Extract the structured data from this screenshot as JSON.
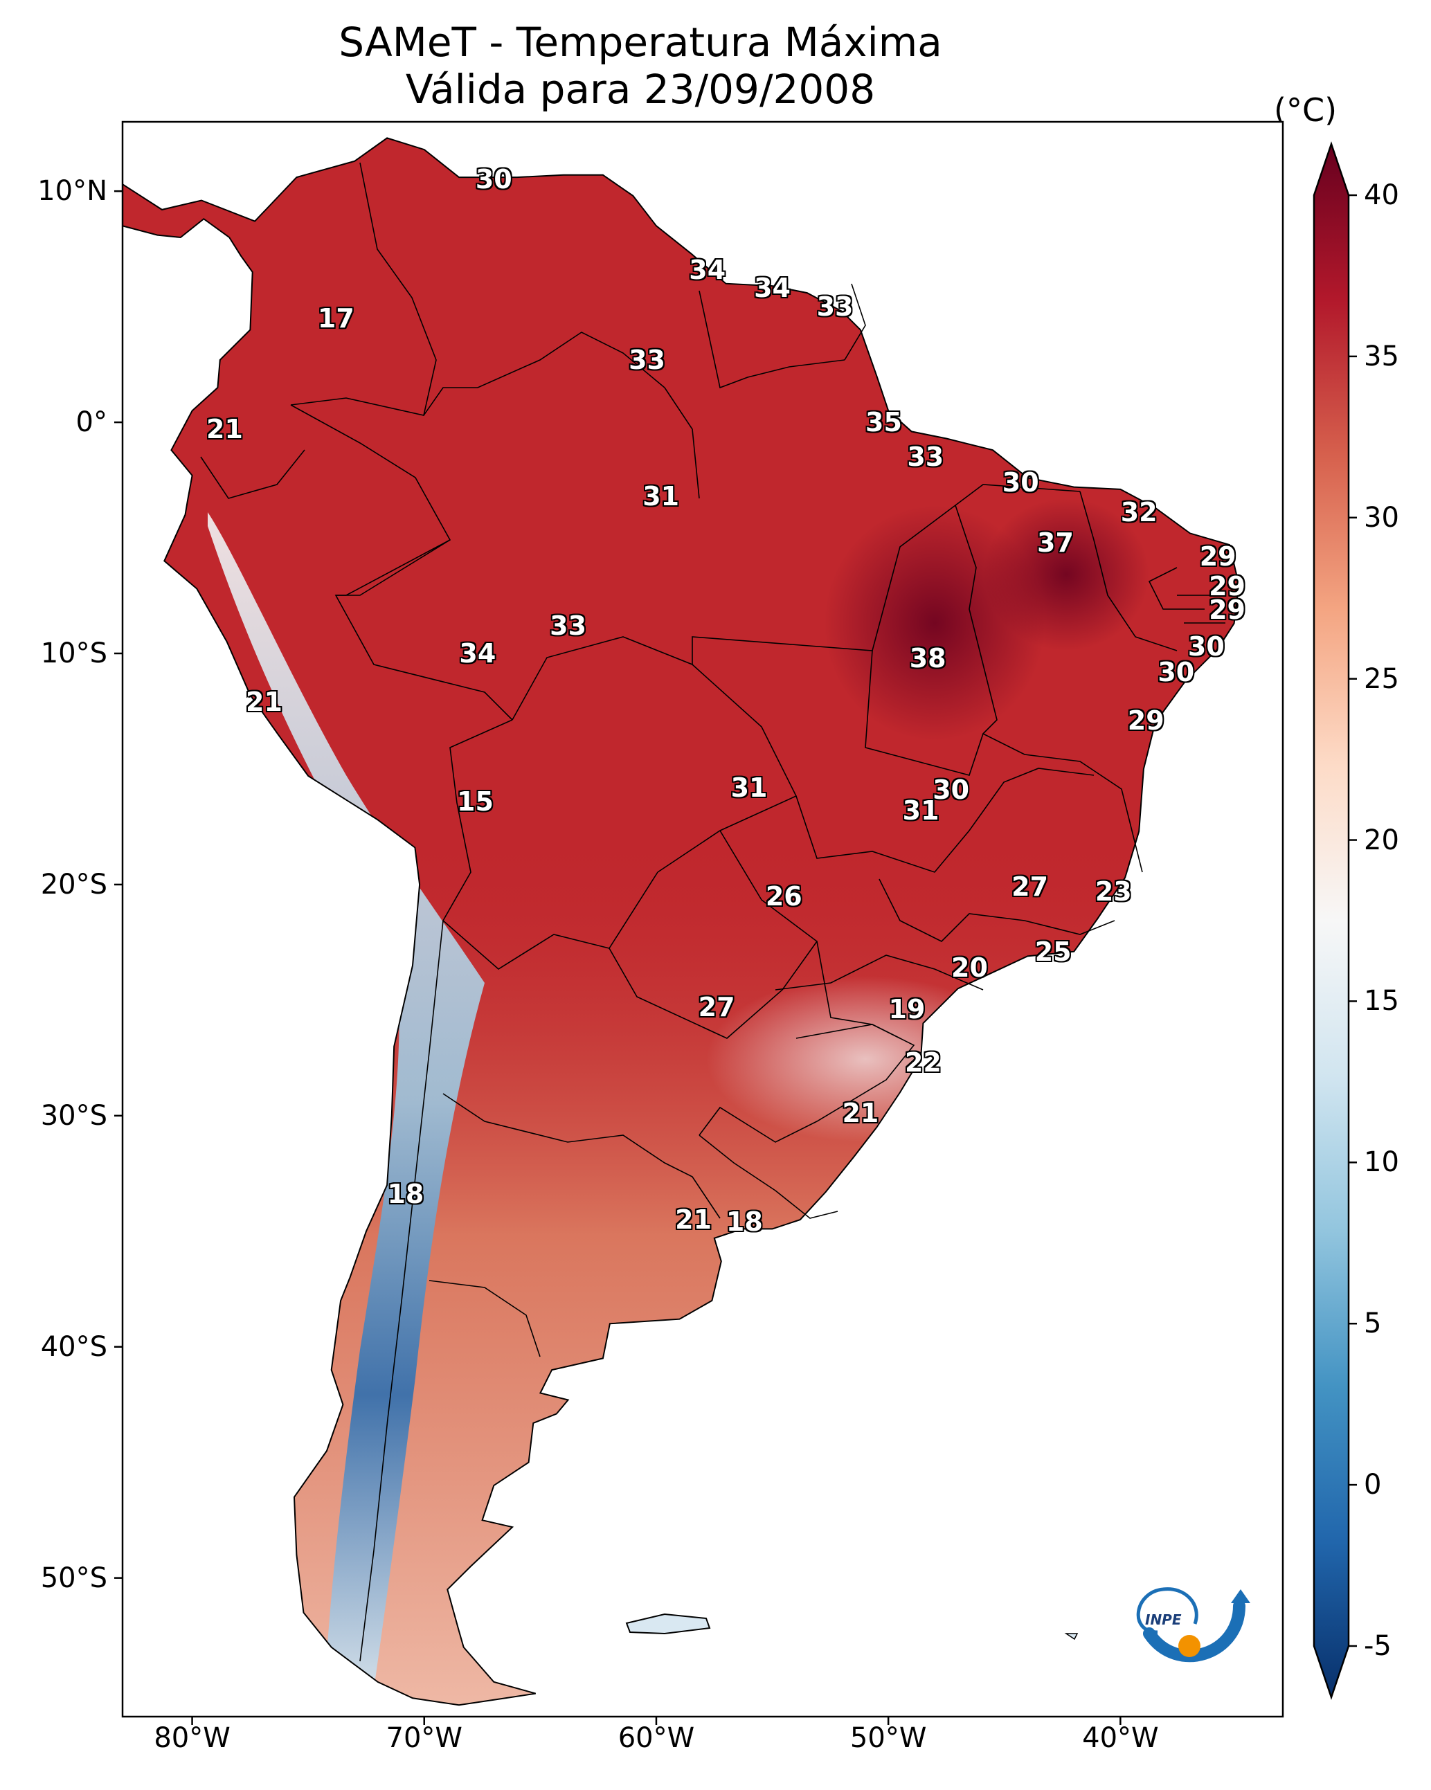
{
  "header": {
    "title_line1": "SAMeT - Temperatura Máxima",
    "title_line2": "Válida para 23/09/2008"
  },
  "colorbar": {
    "unit": "(°C)",
    "ticks": [
      "40",
      "35",
      "30",
      "25",
      "20",
      "15",
      "10",
      "5",
      "0",
      "-5"
    ],
    "min": -5,
    "max": 40,
    "colors": [
      "#08306b",
      "#2166ac",
      "#4393c3",
      "#92c5de",
      "#d1e5f0",
      "#f7f7f7",
      "#fddbc7",
      "#f4a582",
      "#d6604d",
      "#b2182b",
      "#67001f"
    ]
  },
  "axes": {
    "lat_labels": [
      "10°N",
      "0°",
      "10°S",
      "20°S",
      "30°S",
      "40°S",
      "50°S"
    ],
    "lon_labels": [
      "80°W",
      "70°W",
      "60°W",
      "50°W",
      "40°W"
    ]
  },
  "map": {
    "land_color": "#c0272d",
    "ocean_color": "#ffffff",
    "values": [
      {
        "label": "30",
        "lon": -67.0,
        "lat": 10.5
      },
      {
        "label": "17",
        "lon": -73.8,
        "lat": 4.5
      },
      {
        "label": "34",
        "lon": -57.8,
        "lat": 6.6
      },
      {
        "label": "34",
        "lon": -55.0,
        "lat": 5.8
      },
      {
        "label": "33",
        "lon": -52.3,
        "lat": 5.0
      },
      {
        "label": "33",
        "lon": -60.4,
        "lat": 2.7
      },
      {
        "label": "35",
        "lon": -50.2,
        "lat": 0.0
      },
      {
        "label": "21",
        "lon": -78.6,
        "lat": -0.3
      },
      {
        "label": "33",
        "lon": -48.4,
        "lat": -1.5
      },
      {
        "label": "30",
        "lon": -44.3,
        "lat": -2.6
      },
      {
        "label": "31",
        "lon": -59.8,
        "lat": -3.2
      },
      {
        "label": "32",
        "lon": -39.2,
        "lat": -3.9
      },
      {
        "label": "37",
        "lon": -42.8,
        "lat": -5.2
      },
      {
        "label": "29",
        "lon": -35.8,
        "lat": -5.8
      },
      {
        "label": "29",
        "lon": -35.4,
        "lat": -7.1
      },
      {
        "label": "29",
        "lon": -35.4,
        "lat": -8.1
      },
      {
        "label": "33",
        "lon": -63.8,
        "lat": -8.8
      },
      {
        "label": "34",
        "lon": -67.7,
        "lat": -10.0
      },
      {
        "label": "30",
        "lon": -36.3,
        "lat": -9.7
      },
      {
        "label": "38",
        "lon": -48.3,
        "lat": -10.2
      },
      {
        "label": "30",
        "lon": -37.6,
        "lat": -10.8
      },
      {
        "label": "21",
        "lon": -76.9,
        "lat": -12.1
      },
      {
        "label": "29",
        "lon": -38.9,
        "lat": -12.9
      },
      {
        "label": "31",
        "lon": -56.0,
        "lat": -15.8
      },
      {
        "label": "30",
        "lon": -47.3,
        "lat": -15.9
      },
      {
        "label": "31",
        "lon": -48.6,
        "lat": -16.8
      },
      {
        "label": "15",
        "lon": -67.8,
        "lat": -16.4
      },
      {
        "label": "27",
        "lon": -43.9,
        "lat": -20.1
      },
      {
        "label": "26",
        "lon": -54.5,
        "lat": -20.5
      },
      {
        "label": "23",
        "lon": -40.3,
        "lat": -20.3
      },
      {
        "label": "25",
        "lon": -42.9,
        "lat": -22.9
      },
      {
        "label": "20",
        "lon": -46.5,
        "lat": -23.6
      },
      {
        "label": "27",
        "lon": -57.4,
        "lat": -25.3
      },
      {
        "label": "19",
        "lon": -49.2,
        "lat": -25.4
      },
      {
        "label": "22",
        "lon": -48.5,
        "lat": -27.7
      },
      {
        "label": "21",
        "lon": -51.2,
        "lat": -29.9
      },
      {
        "label": "18",
        "lon": -70.8,
        "lat": -33.4
      },
      {
        "label": "21",
        "lon": -58.4,
        "lat": -34.5
      },
      {
        "label": "18",
        "lon": -56.2,
        "lat": -34.6
      }
    ]
  }
}
